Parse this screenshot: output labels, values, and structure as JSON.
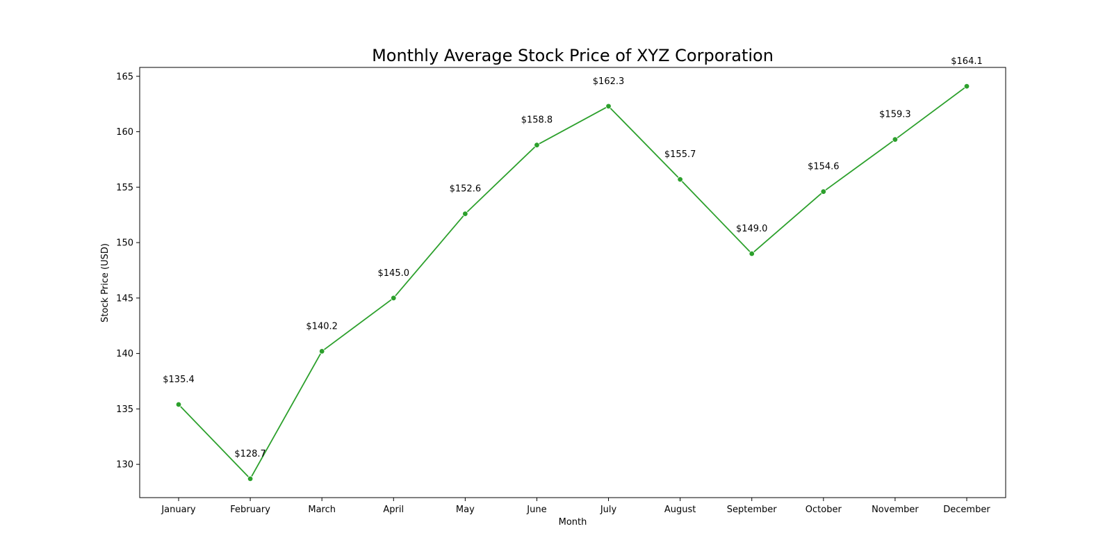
{
  "chart_data": {
    "type": "line",
    "title": "Monthly Average Stock Price of XYZ Corporation",
    "xlabel": "Month",
    "ylabel": "Stock Price (USD)",
    "categories": [
      "January",
      "February",
      "March",
      "April",
      "May",
      "June",
      "July",
      "August",
      "September",
      "October",
      "November",
      "December"
    ],
    "series": [
      {
        "values": [
          135.4,
          128.7,
          140.2,
          145.0,
          152.6,
          158.8,
          162.3,
          155.7,
          149.0,
          154.6,
          159.3,
          164.1
        ],
        "labels": [
          "$135.4",
          "$128.7",
          "$140.2",
          "$145.0",
          "$152.6",
          "$158.8",
          "$162.3",
          "$155.7",
          "$149.0",
          "$154.6",
          "$159.3",
          "$164.1"
        ],
        "color": "#2ca02c",
        "marker": "circle"
      }
    ],
    "yticks": [
      130,
      135,
      140,
      145,
      150,
      155,
      160,
      165
    ],
    "ylim": [
      127.0,
      165.8
    ],
    "grid": false,
    "legend": "none"
  }
}
